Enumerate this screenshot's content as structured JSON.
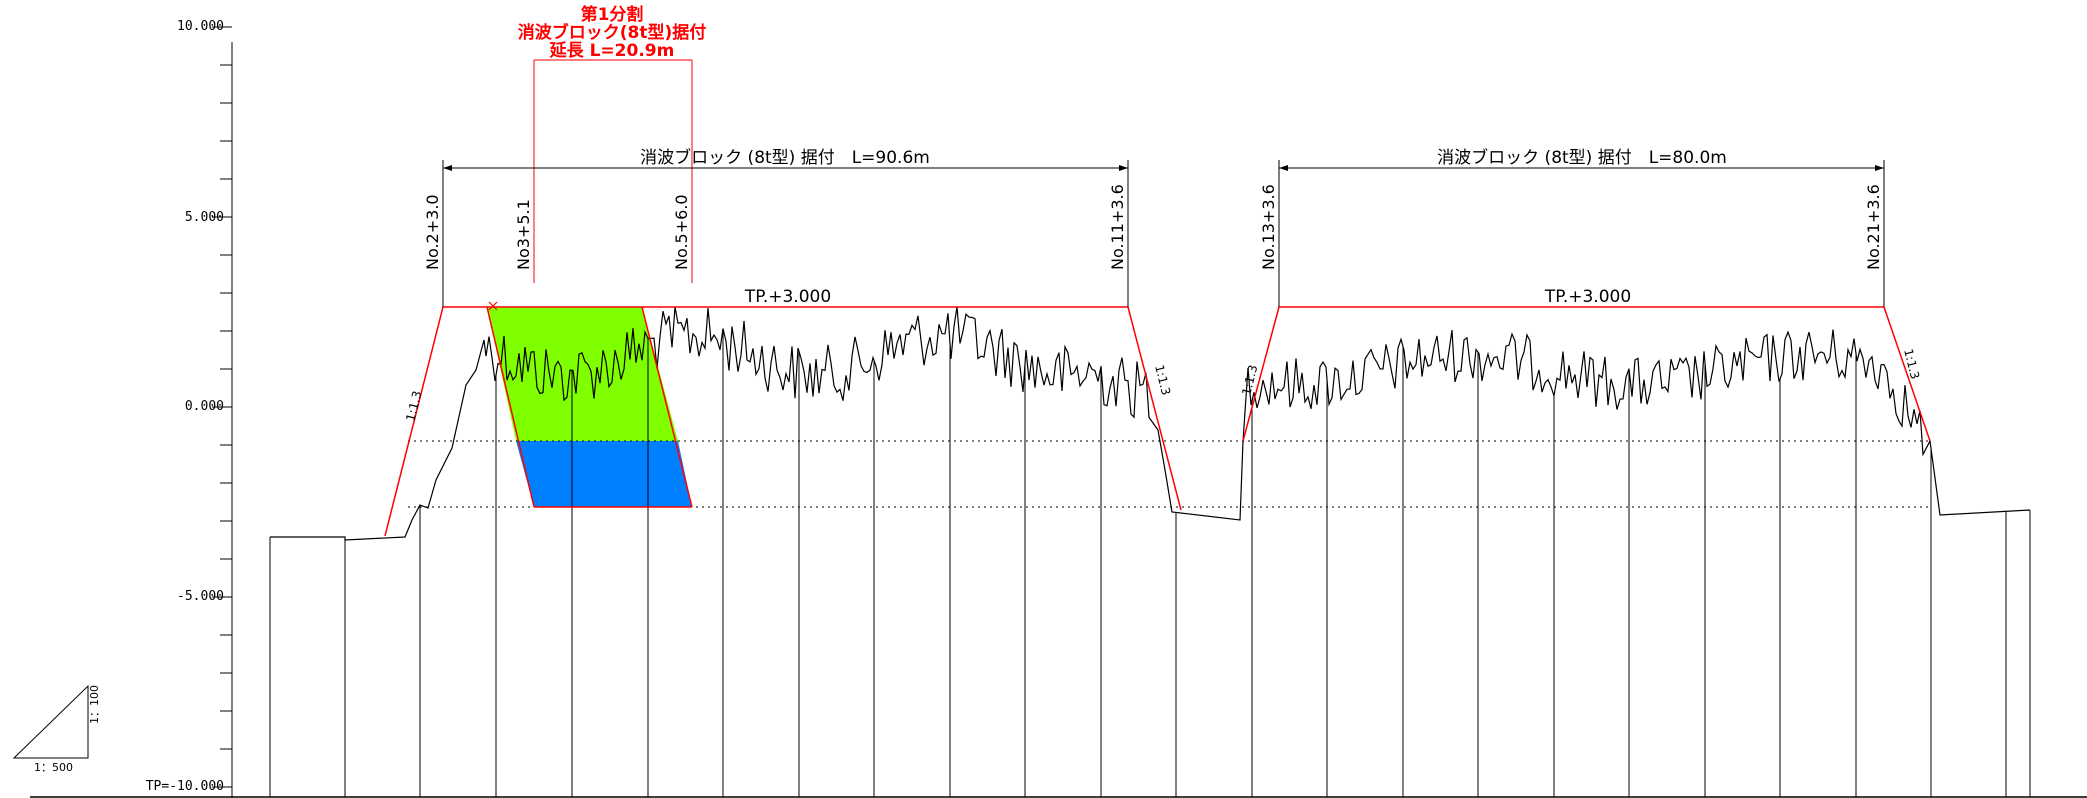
{
  "axis": {
    "y_ticks": [
      {
        "value": 10,
        "label": "10.000"
      },
      {
        "value": 5,
        "label": "5.000"
      },
      {
        "value": 0,
        "label": "0.000"
      },
      {
        "value": -5,
        "label": "-5.000"
      },
      {
        "value": -10,
        "label": "TP=-10.000"
      }
    ]
  },
  "highlight": {
    "title_lines": [
      "第1分割",
      "消波ブロック(8t型)据付",
      "延長 L=20.9m"
    ],
    "start_station": "No3+5.1",
    "end_station": "No.5+6.0",
    "fill_upper": "#80ff00",
    "fill_lower": "#0080ff"
  },
  "sections": [
    {
      "dimension_label": "消波ブロック (8t型) 据付　L=90.6m",
      "start_station": "No.2+3.0",
      "end_station": "No.11+3.6",
      "crest_label": "TP.+3.000",
      "slope_left": "1:1.3",
      "slope_right": "1:1.3"
    },
    {
      "dimension_label": "消波ブロック (8t型) 据付　L=80.0m",
      "start_station": "No.13+3.6",
      "end_station": "No.21+3.6",
      "crest_label": "TP.+3.000",
      "slope_left": "1:1.3",
      "slope_right": "1:1.3"
    }
  ],
  "scale_indicator": {
    "horizontal": "1：500",
    "vertical": "1：100"
  },
  "colors": {
    "design_line": "#ff0000",
    "ground_line": "#000000"
  }
}
